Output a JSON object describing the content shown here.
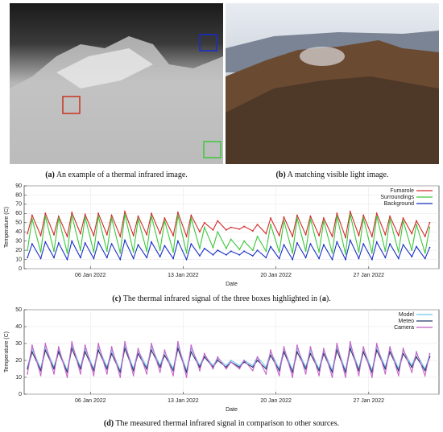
{
  "captions": {
    "a": {
      "label": "(a)",
      "text": "An example of a thermal infrared image."
    },
    "b": {
      "label": "(b)",
      "text": "A matching visible light image."
    },
    "c": {
      "label": "(c)",
      "text": "The thermal infrared signal of the three boxes highlighted in (",
      "ref": "a",
      "end": ")."
    },
    "d": {
      "label": "(d)",
      "text": "The measured thermal infrared signal in comparison to other sources."
    }
  },
  "chart_data": [
    {
      "type": "line",
      "xlabel": "Date",
      "ylabel": "Temperature (C)",
      "grid": true,
      "legend": "upper right",
      "xlim": [
        1,
        32.3
      ],
      "ylim": [
        0,
        90
      ],
      "xticks": [
        {
          "value": 6,
          "label": "06 Jan 2022"
        },
        {
          "value": 13,
          "label": "13 Jan 2022"
        },
        {
          "value": 20,
          "label": "20 Jan 2022"
        },
        {
          "value": 27,
          "label": "27 Jan 2022"
        }
      ],
      "yticks": [
        0,
        10,
        20,
        30,
        40,
        50,
        60,
        70,
        80,
        90
      ],
      "x": [
        1.25,
        1.6,
        2.25,
        2.6,
        3.25,
        3.6,
        4.25,
        4.6,
        5.25,
        5.6,
        6.25,
        6.6,
        7.25,
        7.6,
        8.25,
        8.6,
        9.25,
        9.6,
        10.25,
        10.6,
        11.25,
        11.6,
        12.25,
        12.6,
        13.25,
        13.6,
        14.25,
        14.6,
        15.25,
        15.6,
        16.25,
        16.6,
        17.25,
        17.6,
        18.25,
        18.6,
        19.25,
        19.6,
        20.25,
        20.6,
        21.25,
        21.6,
        22.25,
        22.6,
        23.25,
        23.6,
        24.25,
        24.6,
        25.25,
        25.6,
        26.25,
        26.6,
        27.25,
        27.6,
        28.25,
        28.6,
        29.25,
        29.6,
        30.25,
        30.6,
        31.25,
        31.6
      ],
      "series": [
        {
          "name": "Fumarole",
          "color": "#d42a2a",
          "values": [
            38,
            58,
            36,
            60,
            37,
            57,
            35,
            61,
            38,
            59,
            36,
            60,
            37,
            58,
            35,
            62,
            36,
            57,
            37,
            60,
            38,
            55,
            36,
            61,
            35,
            58,
            40,
            50,
            42,
            52,
            42,
            45,
            43,
            46,
            41,
            48,
            38,
            55,
            36,
            56,
            35,
            58,
            37,
            57,
            36,
            55,
            35,
            60,
            34,
            62,
            36,
            58,
            35,
            60,
            37,
            57,
            36,
            55,
            38,
            52,
            35,
            50
          ]
        },
        {
          "name": "Surroundings",
          "color": "#3cc83c",
          "values": [
            20,
            54,
            18,
            57,
            19,
            55,
            17,
            58,
            20,
            56,
            18,
            57,
            19,
            55,
            17,
            59,
            18,
            54,
            19,
            57,
            20,
            52,
            18,
            58,
            17,
            55,
            22,
            45,
            23,
            40,
            22,
            32,
            21,
            30,
            20,
            35,
            19,
            48,
            18,
            52,
            17,
            55,
            19,
            54,
            18,
            52,
            17,
            57,
            16,
            59,
            18,
            55,
            17,
            57,
            19,
            54,
            18,
            52,
            20,
            48,
            17,
            45
          ]
        },
        {
          "name": "Background",
          "color": "#1a30c8",
          "values": [
            12,
            27,
            11,
            29,
            12,
            28,
            10,
            30,
            12,
            28,
            11,
            29,
            12,
            27,
            10,
            31,
            11,
            26,
            12,
            29,
            13,
            25,
            11,
            30,
            10,
            27,
            14,
            22,
            15,
            20,
            15,
            19,
            15,
            19,
            14,
            20,
            12,
            24,
            11,
            26,
            10,
            28,
            12,
            27,
            11,
            26,
            10,
            29,
            10,
            31,
            11,
            27,
            10,
            29,
            12,
            27,
            11,
            26,
            13,
            24,
            11,
            23
          ]
        }
      ]
    },
    {
      "type": "line",
      "xlabel": "Date",
      "ylabel": "Temperature (C)",
      "grid": true,
      "legend": "upper right",
      "xlim": [
        1,
        32.3
      ],
      "ylim": [
        0,
        50
      ],
      "xticks": [
        {
          "value": 6,
          "label": "06 Jan 2022"
        },
        {
          "value": 13,
          "label": "13 Jan 2022"
        },
        {
          "value": 20,
          "label": "20 Jan 2022"
        },
        {
          "value": 27,
          "label": "27 Jan 2022"
        }
      ],
      "yticks": [
        0,
        10,
        20,
        30,
        40,
        50
      ],
      "x": [
        1.25,
        1.6,
        2.25,
        2.6,
        3.25,
        3.6,
        4.25,
        4.6,
        5.25,
        5.6,
        6.25,
        6.6,
        7.25,
        7.6,
        8.25,
        8.6,
        9.25,
        9.6,
        10.25,
        10.6,
        11.25,
        11.6,
        12.25,
        12.6,
        13.25,
        13.6,
        14.25,
        14.6,
        15.25,
        15.6,
        16.25,
        16.6,
        17.25,
        17.6,
        18.25,
        18.6,
        19.25,
        19.6,
        20.25,
        20.6,
        21.25,
        21.6,
        22.25,
        22.6,
        23.25,
        23.6,
        24.25,
        24.6,
        25.25,
        25.6,
        26.25,
        26.6,
        27.25,
        27.6,
        28.25,
        28.6,
        29.25,
        29.6,
        30.25,
        30.6,
        31.25,
        31.6
      ],
      "series": [
        {
          "name": "Model",
          "color": "#6ec8ee",
          "values": [
            16,
            27,
            15,
            28,
            16,
            26,
            14,
            29,
            16,
            27,
            15,
            28,
            16,
            26,
            14,
            29,
            15,
            26,
            16,
            28,
            17,
            25,
            15,
            29,
            14,
            27,
            17,
            23,
            17,
            21,
            17,
            20,
            17,
            20,
            17,
            22,
            16,
            25,
            15,
            27,
            14,
            27,
            16,
            26,
            15,
            26,
            14,
            28,
            14,
            29,
            15,
            27,
            14,
            28,
            16,
            27,
            15,
            26,
            17,
            24,
            15,
            23
          ]
        },
        {
          "name": "Meteo",
          "color": "#243a6a",
          "values": [
            15,
            25,
            14,
            26,
            15,
            25,
            13,
            27,
            15,
            25,
            14,
            26,
            15,
            24,
            13,
            27,
            14,
            24,
            15,
            26,
            16,
            23,
            14,
            27,
            13,
            25,
            16,
            22,
            16,
            20,
            16,
            19,
            16,
            19,
            16,
            20,
            15,
            23,
            14,
            25,
            13,
            25,
            15,
            24,
            14,
            24,
            13,
            26,
            13,
            27,
            14,
            25,
            13,
            26,
            15,
            25,
            14,
            24,
            16,
            22,
            14,
            22
          ]
        },
        {
          "name": "Camera",
          "color": "#c860c8",
          "values": [
            12,
            29,
            11,
            30,
            12,
            28,
            10,
            31,
            12,
            29,
            11,
            30,
            12,
            28,
            10,
            31,
            11,
            27,
            12,
            30,
            13,
            26,
            11,
            31,
            10,
            29,
            14,
            24,
            15,
            22,
            15,
            19,
            15,
            20,
            14,
            22,
            12,
            26,
            11,
            28,
            10,
            29,
            12,
            28,
            11,
            27,
            10,
            30,
            10,
            31,
            11,
            28,
            10,
            30,
            12,
            28,
            11,
            27,
            13,
            25,
            11,
            24
          ]
        }
      ]
    }
  ]
}
